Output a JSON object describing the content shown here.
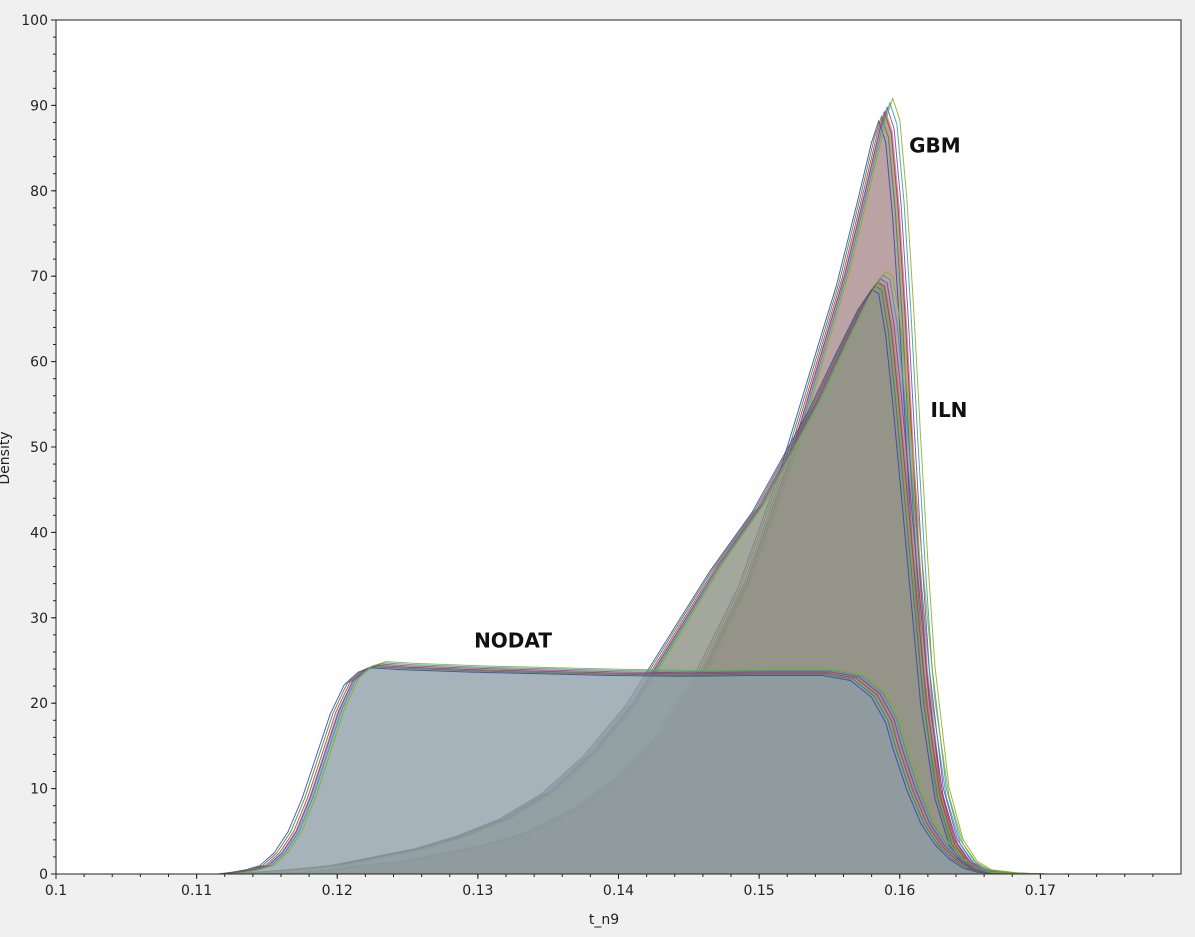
{
  "chart_data": {
    "type": "area",
    "xlabel": "t_n9",
    "ylabel": "Density",
    "xlim": [
      0.1,
      0.18
    ],
    "ylim": [
      0,
      100
    ],
    "x_ticks": [
      0.1,
      0.11,
      0.12,
      0.13,
      0.14,
      0.15,
      0.16,
      0.17
    ],
    "x_tick_labels": [
      "0.1",
      "0.11",
      "0.12",
      "0.13",
      "0.14",
      "0.15",
      "0.16",
      "0.17"
    ],
    "y_ticks": [
      0,
      10,
      20,
      30,
      40,
      50,
      60,
      70,
      80,
      90,
      100
    ],
    "y_tick_labels": [
      "0",
      "10",
      "20",
      "30",
      "40",
      "50",
      "60",
      "70",
      "80",
      "90",
      "100"
    ],
    "grid": false,
    "annotations": [
      {
        "text": "GBM",
        "x": 0.1625,
        "y": 84.5
      },
      {
        "text": "ILN",
        "x": 0.1635,
        "y": 53.5
      },
      {
        "text": "NODAT",
        "x": 0.1325,
        "y": 26.5
      }
    ],
    "groups": [
      {
        "label": "GBM",
        "fill": "#a8898b",
        "x": [
          0.115,
          0.118,
          0.12,
          0.122,
          0.125,
          0.128,
          0.131,
          0.134,
          0.137,
          0.14,
          0.143,
          0.146,
          0.149,
          0.152,
          0.154,
          0.156,
          0.1575,
          0.1585,
          0.159,
          0.1595,
          0.16,
          0.1605,
          0.161,
          0.1615,
          0.162,
          0.163,
          0.164,
          0.165,
          0.166,
          0.168,
          0.17
        ],
        "y": [
          0,
          0.2,
          0.5,
          1.0,
          1.5,
          2.5,
          3.5,
          5,
          7.5,
          11,
          16,
          24,
          34,
          48,
          59,
          70,
          80,
          87,
          89.5,
          87,
          78,
          65,
          50,
          36,
          24,
          10,
          4,
          1.5,
          0.5,
          0.1,
          0
        ]
      },
      {
        "label": "ILN",
        "fill": "#8a9080",
        "x": [
          0.113,
          0.117,
          0.12,
          0.123,
          0.126,
          0.129,
          0.132,
          0.135,
          0.138,
          0.141,
          0.144,
          0.147,
          0.15,
          0.152,
          0.154,
          0.156,
          0.1575,
          0.1585,
          0.159,
          0.1595,
          0.16,
          0.1605,
          0.161,
          0.1615,
          0.162,
          0.163,
          0.164,
          0.165,
          0.166,
          0.168,
          0.17
        ],
        "y": [
          0,
          0.5,
          1.0,
          2.0,
          3.0,
          4.5,
          6.5,
          9.5,
          14,
          20,
          28,
          36,
          43,
          49,
          55,
          62,
          67,
          69.5,
          69,
          64,
          56,
          47,
          38,
          29,
          20,
          9,
          3.5,
          1.2,
          0.4,
          0.1,
          0
        ]
      },
      {
        "label": "NODAT",
        "fill": "#8e9ea6",
        "x": [
          0.105,
          0.112,
          0.113,
          0.114,
          0.115,
          0.116,
          0.117,
          0.118,
          0.119,
          0.12,
          0.121,
          0.122,
          0.123,
          0.125,
          0.13,
          0.135,
          0.14,
          0.145,
          0.15,
          0.155,
          0.157,
          0.1585,
          0.1595,
          0.16,
          0.161,
          0.162,
          0.163,
          0.164,
          0.165,
          0.166,
          0.168
        ],
        "y": [
          0,
          0,
          0.2,
          0.5,
          1,
          2.5,
          5,
          9,
          14,
          19,
          22.5,
          24,
          24.5,
          24.3,
          24,
          23.8,
          23.6,
          23.5,
          23.6,
          23.6,
          23,
          21,
          18,
          15,
          10,
          6,
          3.5,
          1.8,
          0.7,
          0.2,
          0
        ]
      }
    ]
  }
}
